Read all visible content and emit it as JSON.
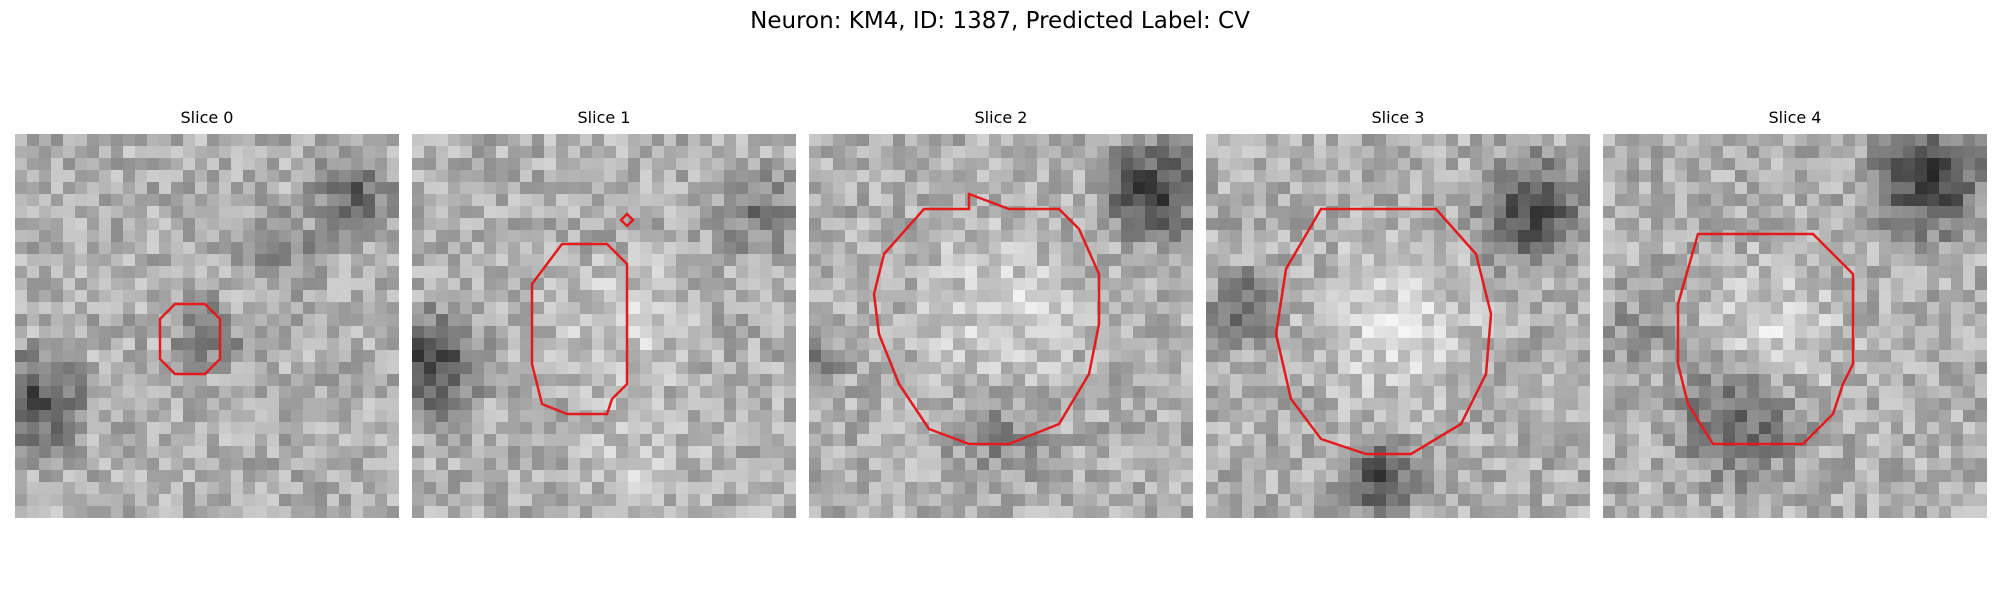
{
  "figure": {
    "title": "Neuron: KM4, ID: 1387, Predicted Label: CV"
  },
  "slices": [
    {
      "label": "Slice 0"
    },
    {
      "label": "Slice 1"
    },
    {
      "label": "Slice 2"
    },
    {
      "label": "Slice 3"
    },
    {
      "label": "Slice 4"
    }
  ],
  "contour_color": "#e41a1c"
}
